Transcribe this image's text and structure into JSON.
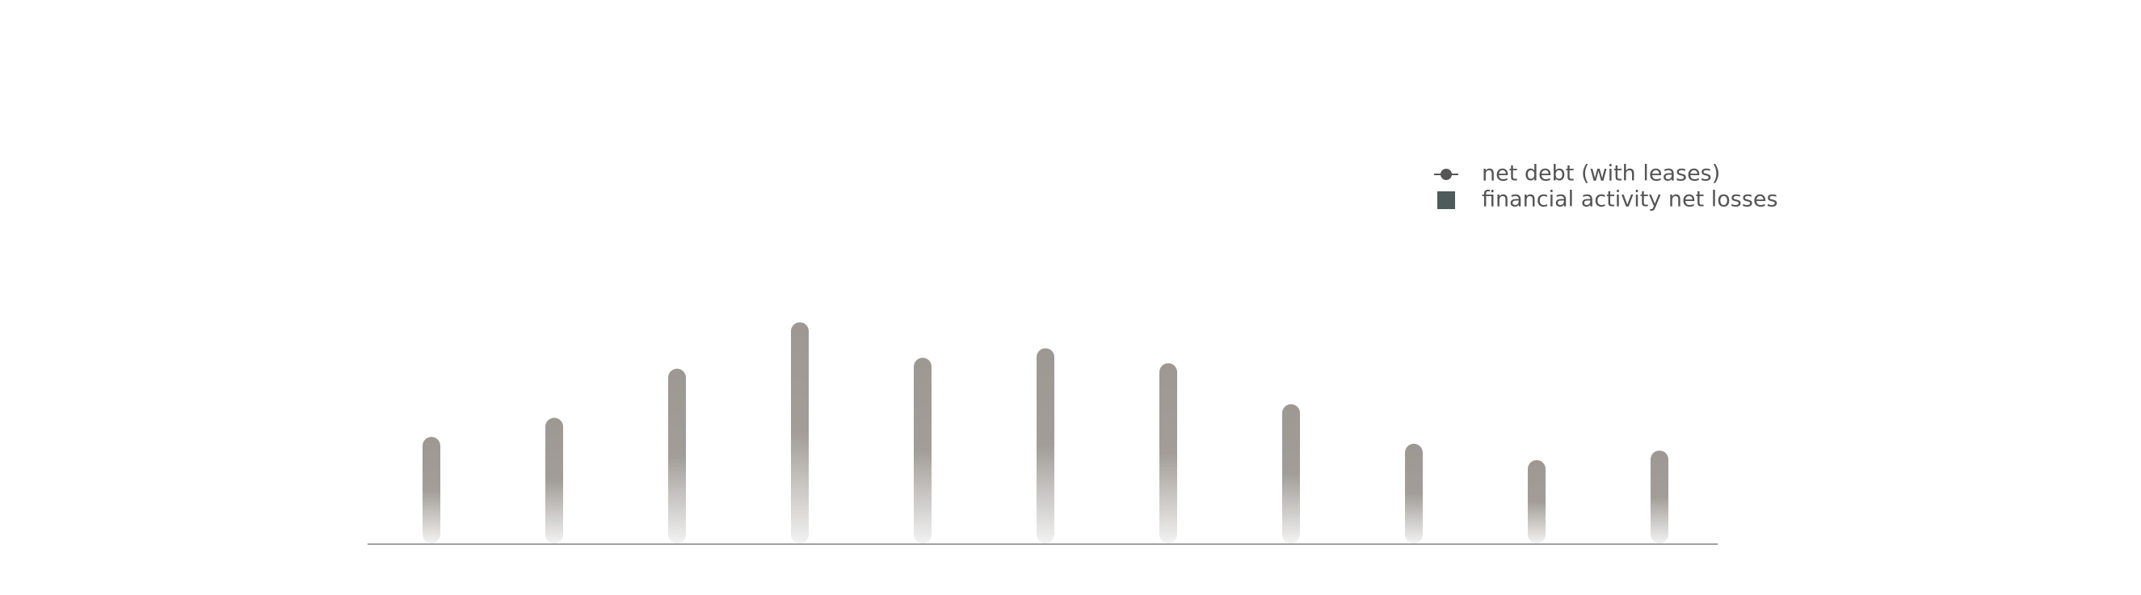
{
  "chart_data": {
    "type": "bar",
    "categories": [
      null,
      null,
      null,
      null,
      null,
      null,
      null,
      null,
      null,
      null,
      null
    ],
    "series": [
      {
        "name": "net debt (with leases)",
        "type": "line",
        "color": "#555555",
        "values": [
          null,
          null,
          null,
          null,
          null,
          null,
          null,
          null,
          null,
          null,
          null
        ]
      },
      {
        "name": "financial activity net losses",
        "type": "bar",
        "color": "#9e9893",
        "legend_color": "#4f5a5a",
        "values": [
          78,
          92,
          128,
          162,
          136,
          143,
          132,
          102,
          73,
          61,
          68
        ]
      }
    ],
    "ylim": [
      0,
      200
    ]
  }
}
